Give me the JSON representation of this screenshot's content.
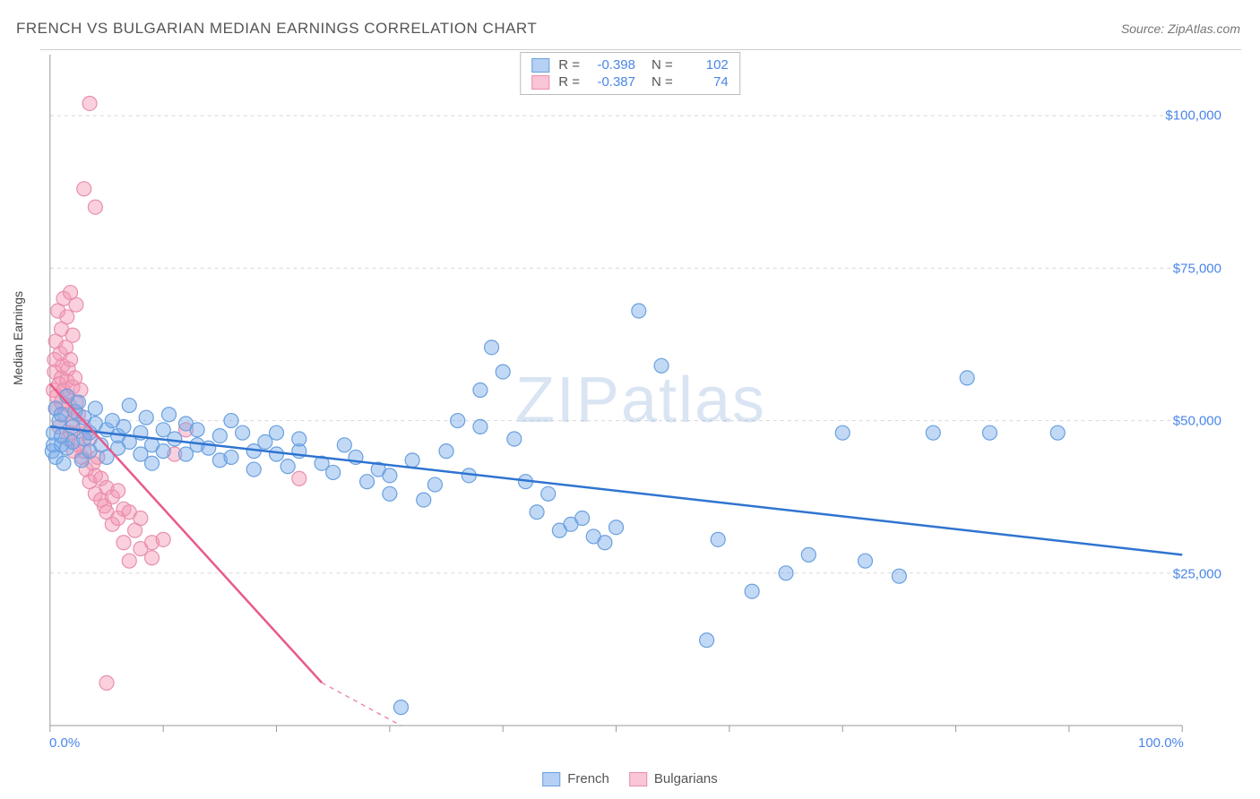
{
  "title": "FRENCH VS BULGARIAN MEDIAN EARNINGS CORRELATION CHART",
  "source": "Source: ZipAtlas.com",
  "ylabel": "Median Earnings",
  "watermark": "ZIPatlas",
  "chart": {
    "type": "scatter",
    "xlim": [
      0,
      100
    ],
    "ylim": [
      0,
      110000
    ],
    "xticks": [
      0,
      10,
      20,
      30,
      40,
      50,
      60,
      70,
      80,
      90,
      100
    ],
    "xtick_labels_show": {
      "0": "0.0%",
      "100": "100.0%"
    },
    "yticks": [
      25000,
      50000,
      75000,
      100000
    ],
    "ytick_labels": [
      "$25,000",
      "$50,000",
      "$75,000",
      "$100,000"
    ],
    "grid_color": "#d8d8d8",
    "axis_color": "#999999",
    "background_color": "#ffffff",
    "series": [
      {
        "name": "French",
        "color_fill": "rgba(120,170,235,0.45)",
        "color_stroke": "#6aa0de",
        "line_color": "#2f74d0",
        "line_width": 2.5,
        "marker_radius": 8,
        "regression": {
          "x1": 0,
          "y1": 49000,
          "x2": 100,
          "y2": 28000
        },
        "R": "-0.398",
        "N": "102",
        "points": [
          [
            0.2,
            45000
          ],
          [
            0.3,
            46000
          ],
          [
            0.3,
            48000
          ],
          [
            0.5,
            44000
          ],
          [
            0.5,
            52000
          ],
          [
            0.8,
            50000
          ],
          [
            1,
            46000
          ],
          [
            1,
            47500
          ],
          [
            1,
            51000
          ],
          [
            1.2,
            43000
          ],
          [
            1.5,
            45500
          ],
          [
            1.5,
            54000
          ],
          [
            2,
            49000
          ],
          [
            2,
            46500
          ],
          [
            2.2,
            51500
          ],
          [
            2.5,
            53000
          ],
          [
            2.8,
            43500
          ],
          [
            3,
            47000
          ],
          [
            3,
            50500
          ],
          [
            3.5,
            48000
          ],
          [
            3.5,
            45000
          ],
          [
            4,
            49500
          ],
          [
            4,
            52000
          ],
          [
            4.5,
            46000
          ],
          [
            5,
            44000
          ],
          [
            5,
            48500
          ],
          [
            5.5,
            50000
          ],
          [
            6,
            47500
          ],
          [
            6,
            45500
          ],
          [
            6.5,
            49000
          ],
          [
            7,
            46500
          ],
          [
            7,
            52500
          ],
          [
            8,
            44500
          ],
          [
            8,
            48000
          ],
          [
            8.5,
            50500
          ],
          [
            9,
            46000
          ],
          [
            9,
            43000
          ],
          [
            10,
            48500
          ],
          [
            10,
            45000
          ],
          [
            10.5,
            51000
          ],
          [
            11,
            47000
          ],
          [
            12,
            49500
          ],
          [
            12,
            44500
          ],
          [
            13,
            46000
          ],
          [
            13,
            48500
          ],
          [
            14,
            45500
          ],
          [
            15,
            47500
          ],
          [
            15,
            43500
          ],
          [
            16,
            44000
          ],
          [
            16,
            50000
          ],
          [
            17,
            48000
          ],
          [
            18,
            45000
          ],
          [
            18,
            42000
          ],
          [
            19,
            46500
          ],
          [
            20,
            44500
          ],
          [
            20,
            48000
          ],
          [
            21,
            42500
          ],
          [
            22,
            45000
          ],
          [
            22,
            47000
          ],
          [
            24,
            43000
          ],
          [
            25,
            41500
          ],
          [
            26,
            46000
          ],
          [
            27,
            44000
          ],
          [
            28,
            40000
          ],
          [
            29,
            42000
          ],
          [
            30,
            41000
          ],
          [
            30,
            38000
          ],
          [
            31,
            3000
          ],
          [
            32,
            43500
          ],
          [
            33,
            37000
          ],
          [
            34,
            39500
          ],
          [
            35,
            45000
          ],
          [
            36,
            50000
          ],
          [
            37,
            41000
          ],
          [
            38,
            55000
          ],
          [
            38,
            49000
          ],
          [
            39,
            62000
          ],
          [
            40,
            58000
          ],
          [
            41,
            47000
          ],
          [
            42,
            40000
          ],
          [
            43,
            35000
          ],
          [
            44,
            38000
          ],
          [
            45,
            32000
          ],
          [
            46,
            33000
          ],
          [
            47,
            34000
          ],
          [
            48,
            31000
          ],
          [
            49,
            30000
          ],
          [
            50,
            32500
          ],
          [
            52,
            68000
          ],
          [
            54,
            59000
          ],
          [
            58,
            14000
          ],
          [
            59,
            30500
          ],
          [
            62,
            22000
          ],
          [
            65,
            25000
          ],
          [
            67,
            28000
          ],
          [
            70,
            48000
          ],
          [
            72,
            27000
          ],
          [
            75,
            24500
          ],
          [
            78,
            48000
          ],
          [
            81,
            57000
          ],
          [
            83,
            48000
          ],
          [
            89,
            48000
          ]
        ]
      },
      {
        "name": "Bulgarians",
        "color_fill": "rgba(245,150,180,0.45)",
        "color_stroke": "#e88fad",
        "line_color": "#e85a8a",
        "line_width": 2.5,
        "marker_radius": 8,
        "regression": {
          "x1": 0,
          "y1": 56000,
          "x2": 25,
          "y2": 5000
        },
        "regression_dashed_from": 24,
        "R": "-0.387",
        "N": "74",
        "points": [
          [
            0.3,
            55000
          ],
          [
            0.4,
            58000
          ],
          [
            0.5,
            52000
          ],
          [
            0.5,
            63000
          ],
          [
            0.6,
            54000
          ],
          [
            0.7,
            68000
          ],
          [
            0.8,
            56000
          ],
          [
            0.8,
            49000
          ],
          [
            0.9,
            61000
          ],
          [
            1,
            65000
          ],
          [
            1,
            57000
          ],
          [
            1,
            53000
          ],
          [
            1.1,
            59000
          ],
          [
            1.2,
            55000
          ],
          [
            1.2,
            70000
          ],
          [
            1.3,
            51000
          ],
          [
            1.4,
            62000
          ],
          [
            1.5,
            54000
          ],
          [
            1.5,
            67000
          ],
          [
            1.5,
            56500
          ],
          [
            1.6,
            58500
          ],
          [
            1.7,
            52500
          ],
          [
            1.8,
            60000
          ],
          [
            1.8,
            48000
          ],
          [
            2,
            55500
          ],
          [
            2,
            64000
          ],
          [
            2,
            50000
          ],
          [
            2.2,
            57000
          ],
          [
            2.3,
            53000
          ],
          [
            2.5,
            46000
          ],
          [
            2.5,
            51000
          ],
          [
            2.7,
            55000
          ],
          [
            2.8,
            44000
          ],
          [
            3,
            49000
          ],
          [
            3,
            45000
          ],
          [
            3.2,
            42000
          ],
          [
            3.5,
            47000
          ],
          [
            3.5,
            40000
          ],
          [
            3.8,
            43000
          ],
          [
            4,
            41000
          ],
          [
            4,
            38000
          ],
          [
            4.2,
            44000
          ],
          [
            4.5,
            37000
          ],
          [
            4.5,
            40500
          ],
          [
            4.8,
            36000
          ],
          [
            5,
            39000
          ],
          [
            5,
            35000
          ],
          [
            5.5,
            37500
          ],
          [
            5.5,
            33000
          ],
          [
            6,
            34000
          ],
          [
            6,
            38500
          ],
          [
            6.5,
            30000
          ],
          [
            6.5,
            35500
          ],
          [
            7,
            35000
          ],
          [
            7,
            27000
          ],
          [
            7.5,
            32000
          ],
          [
            8,
            29000
          ],
          [
            8,
            34000
          ],
          [
            9,
            30000
          ],
          [
            9,
            27500
          ],
          [
            10,
            30500
          ],
          [
            11,
            44500
          ],
          [
            12,
            48500
          ],
          [
            22,
            40500
          ],
          [
            3.5,
            102000
          ],
          [
            4,
            85000
          ],
          [
            5,
            7000
          ],
          [
            3,
            88000
          ],
          [
            1.8,
            71000
          ],
          [
            2.3,
            69000
          ],
          [
            0.4,
            60000
          ],
          [
            1.6,
            47000
          ],
          [
            2.1,
            45000
          ],
          [
            3.2,
            48000
          ]
        ]
      }
    ]
  },
  "legend_top": {
    "rows": [
      {
        "swatch_fill": "rgba(120,170,235,0.55)",
        "swatch_stroke": "#6aa0de",
        "R": "-0.398",
        "N": "102"
      },
      {
        "swatch_fill": "rgba(245,150,180,0.55)",
        "swatch_stroke": "#e88fad",
        "R": "-0.387",
        "N": "74"
      }
    ],
    "labels": {
      "R": "R =",
      "N": "N ="
    }
  },
  "legend_bottom": {
    "items": [
      {
        "swatch_fill": "rgba(120,170,235,0.55)",
        "swatch_stroke": "#6aa0de",
        "label": "French"
      },
      {
        "swatch_fill": "rgba(245,150,180,0.55)",
        "swatch_stroke": "#e88fad",
        "label": "Bulgarians"
      }
    ]
  }
}
